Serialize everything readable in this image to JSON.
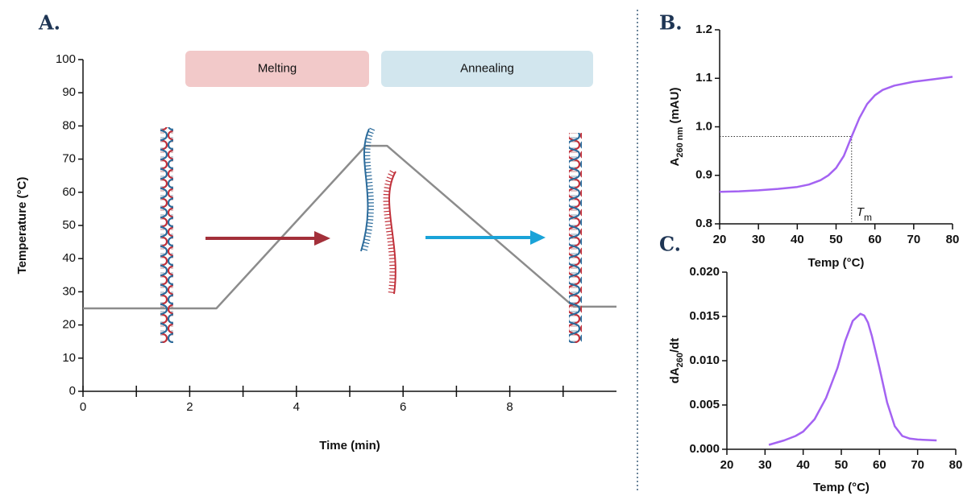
{
  "chart_data": [
    {
      "type": "line",
      "title": "A.",
      "xlabel": "Time (min)",
      "ylabel": "Temperature (°C)",
      "xlim": [
        0,
        10
      ],
      "xticks": [
        0,
        2,
        4,
        6,
        8
      ],
      "xticks_minor": [
        1,
        3,
        5,
        7,
        9
      ],
      "ylim": [
        0,
        100
      ],
      "yticks": [
        0,
        10,
        20,
        30,
        40,
        50,
        60,
        70,
        80,
        90,
        100
      ],
      "series": [
        {
          "color": "#8c8c8c",
          "x": [
            0,
            2.5,
            5.3,
            5.7,
            9.2,
            10
          ],
          "values": [
            25,
            25,
            74,
            74,
            25.5,
            25.5
          ]
        }
      ],
      "annotations": [
        {
          "text": "Melting",
          "color": "#f2c9c9"
        },
        {
          "text": "Annealing",
          "color": "#d2e6ee"
        }
      ]
    },
    {
      "type": "line",
      "title": "B.",
      "xlabel": "Temp (°C)",
      "ylabel": {
        "main": "A",
        "sub": "260 nm",
        "rest": " (mAU)"
      },
      "xlim": [
        20,
        80
      ],
      "xticks": [
        20,
        30,
        40,
        50,
        60,
        70,
        80
      ],
      "ylim": [
        0.8,
        1.2
      ],
      "yticks": [
        0.8,
        0.9,
        {
          "value": 1,
          "label": "1.0"
        },
        1.1,
        1.2
      ],
      "series": [
        {
          "color": "#a463f2",
          "x": [
            20,
            25,
            30,
            35,
            40,
            43,
            46,
            48,
            50,
            52,
            54,
            56,
            58,
            60,
            62,
            65,
            70,
            75,
            80
          ],
          "values": [
            0.866,
            0.867,
            0.869,
            0.872,
            0.876,
            0.881,
            0.89,
            0.9,
            0.915,
            0.94,
            0.98,
            1.018,
            1.047,
            1.065,
            1.076,
            1.085,
            1.093,
            1.098,
            1.103
          ]
        }
      ],
      "marker": {
        "x": 54,
        "y": 0.98,
        "label": "T",
        "sub": "m"
      }
    },
    {
      "type": "line",
      "title": "C.",
      "xlabel": "Temp (°C)",
      "ylabel": {
        "main": "dA",
        "sub": "260",
        "rest": "/dt"
      },
      "xlim": [
        20,
        80
      ],
      "xticks": [
        20,
        30,
        40,
        50,
        60,
        70,
        80
      ],
      "ylim": [
        0,
        0.02
      ],
      "yticks": [
        {
          "value": 0,
          "label": "0.000"
        },
        {
          "value": 0.005,
          "label": "0.005"
        },
        {
          "value": 0.01,
          "label": "0.010"
        },
        {
          "value": 0.015,
          "label": "0.015"
        },
        {
          "value": 0.02,
          "label": "0.020"
        }
      ],
      "series": [
        {
          "color": "#a463f2",
          "x": [
            31,
            35,
            38,
            40,
            43,
            46,
            49,
            51,
            53,
            55,
            56,
            57,
            58,
            60,
            62,
            64,
            66,
            68,
            70,
            75
          ],
          "values": [
            0.0005,
            0.001,
            0.0015,
            0.002,
            0.0034,
            0.0058,
            0.0092,
            0.0122,
            0.0145,
            0.0153,
            0.0151,
            0.0143,
            0.0128,
            0.0092,
            0.0053,
            0.0026,
            0.0015,
            0.0012,
            0.0011,
            0.001
          ]
        }
      ]
    }
  ]
}
